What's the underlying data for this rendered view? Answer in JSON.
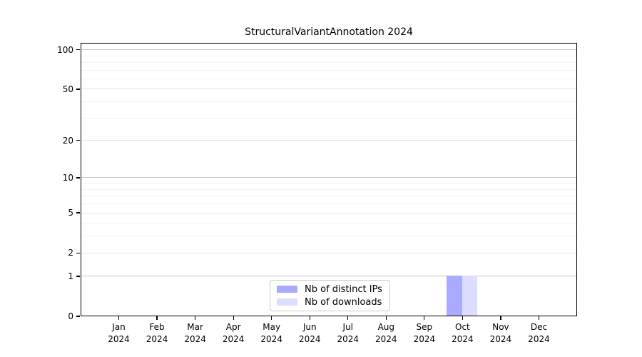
{
  "chart_data": {
    "type": "bar",
    "title": "StructuralVariantAnnotation 2024",
    "categories": [
      "Jan",
      "Feb",
      "Mar",
      "Apr",
      "May",
      "Jun",
      "Jul",
      "Aug",
      "Sep",
      "Oct",
      "Nov",
      "Dec"
    ],
    "category_sub_label": "2024",
    "series": [
      {
        "name": "Nb of distinct IPs",
        "color": "#aaaaff",
        "values": [
          0,
          0,
          0,
          0,
          0,
          0,
          0,
          0,
          0,
          1,
          0,
          0
        ]
      },
      {
        "name": "Nb of downloads",
        "color": "#ddddff",
        "values": [
          0,
          0,
          0,
          0,
          0,
          0,
          0,
          0,
          0,
          1,
          0,
          0
        ]
      }
    ],
    "y_scale": "log1p",
    "y_ticks": [
      0,
      1,
      2,
      5,
      10,
      20,
      50,
      100
    ],
    "y_minor_gridlines": [
      3,
      4,
      6,
      7,
      8,
      9,
      30,
      40,
      60,
      70,
      80,
      90
    ],
    "ylim": [
      0,
      113
    ],
    "grid": "on",
    "legend_position": "lower center",
    "colors": {
      "spine": "#000000",
      "grid_decade": "#c8c8c8",
      "grid_major": "#e3e3e3",
      "grid_minor": "#f2f2f2",
      "legend_border": "#cbcbcb",
      "background": "#ffffff",
      "text": "#000000"
    }
  }
}
